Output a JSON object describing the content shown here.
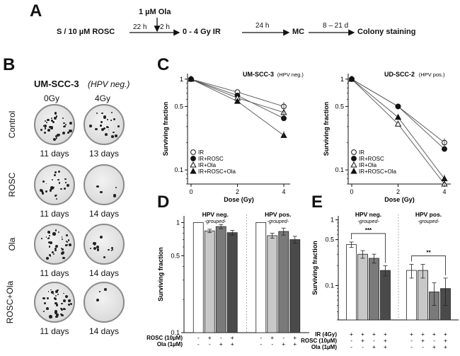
{
  "panels": {
    "A": "A",
    "B": "B",
    "C": "C",
    "D": "D",
    "E": "E"
  },
  "schematic": {
    "start": "S / 10 µM ROSC",
    "drug": "1 µM Ola",
    "t1": "22 h",
    "t2": "2 h",
    "ir": "0 - 4 Gy IR",
    "t3": "24 h",
    "mc": "MC",
    "t4": "8 – 21 d",
    "end": "Colony staining"
  },
  "panel_b": {
    "cell_line": "UM-SCC-3",
    "subtitle": "(HPV neg.)",
    "col_0": "0Gy",
    "col_4": "4Gy",
    "rows": [
      {
        "label": "Control",
        "day0": "11 days",
        "day4": "13 days"
      },
      {
        "label": "ROSC",
        "day0": "11 days",
        "day4": "14 days"
      },
      {
        "label": "Ola",
        "day0": "11 days",
        "day4": "14 days"
      },
      {
        "label": "ROSC+Ola",
        "day0": "11 days",
        "day4": "14 days"
      }
    ]
  },
  "chart_data": [
    {
      "type": "line",
      "id": "C-left",
      "title": "UM-SCC-3",
      "title_note": "(HPV neg.)",
      "xlabel": "Dose (Gy)",
      "ylabel": "Surviving fraction",
      "x": [
        0,
        2,
        4
      ],
      "xticks": [
        "0",
        "2",
        "4"
      ],
      "yscale": "log",
      "ylim": [
        0.07,
        1.15
      ],
      "yticks": [
        "1",
        "0.5",
        "0.1"
      ],
      "series": [
        {
          "name": "IR",
          "marker": "circle-open",
          "values": [
            1,
            0.72,
            0.5
          ]
        },
        {
          "name": "IR+ROSC",
          "marker": "circle",
          "values": [
            1,
            0.66,
            0.37
          ]
        },
        {
          "name": "IR+Ola",
          "marker": "triangle-open",
          "values": [
            1,
            0.62,
            0.43
          ]
        },
        {
          "name": "IR+ROSC+Ola",
          "marker": "triangle",
          "values": [
            1,
            0.57,
            0.24
          ]
        }
      ]
    },
    {
      "type": "line",
      "id": "C-right",
      "title": "UD-SCC-2",
      "title_note": "(HPV pos.)",
      "xlabel": "Dose (Gy)",
      "ylabel": "Surviving fraction",
      "x": [
        0,
        2,
        4
      ],
      "xticks": [
        "0",
        "2",
        "4"
      ],
      "yscale": "log",
      "ylim": [
        0.07,
        1.15
      ],
      "yticks": [
        "1",
        "0.5",
        "0.1"
      ],
      "series": [
        {
          "name": "IR",
          "marker": "circle-open",
          "values": [
            1,
            0.5,
            0.2
          ]
        },
        {
          "name": "IR+ROSC",
          "marker": "circle",
          "values": [
            1,
            0.5,
            0.17
          ]
        },
        {
          "name": "IR+Ola",
          "marker": "triangle-open",
          "values": [
            1,
            0.32,
            0.07
          ]
        },
        {
          "name": "IR+ROSC+Ola",
          "marker": "triangle",
          "values": [
            1,
            0.38,
            0.08
          ]
        }
      ]
    },
    {
      "type": "bar",
      "id": "D",
      "ylabel": "Surviving fraction",
      "yscale": "log",
      "ylim": [
        0.1,
        1.15
      ],
      "yticks": [
        "1",
        "0.5",
        "0.1"
      ],
      "groups": [
        {
          "name": "HPV neg.",
          "note": "-grouped-",
          "values": [
            1,
            0.84,
            0.92,
            0.81
          ],
          "errors": [
            0,
            0.03,
            0.04,
            0.04
          ]
        },
        {
          "name": "HPV pos.",
          "note": "-grouped-",
          "values": [
            1,
            0.76,
            0.83,
            0.7
          ],
          "errors": [
            0,
            0.04,
            0.06,
            0.05
          ]
        }
      ],
      "bar_colors": [
        "#ffffff",
        "#c8c8c8",
        "#7a7a7a",
        "#4a4a4a"
      ],
      "conditions": [
        {
          "name": "ROSC (10µM)",
          "values": [
            "-",
            "+",
            "-",
            "+"
          ]
        },
        {
          "name": "Ola (1µM)",
          "values": [
            "-",
            "-",
            "+",
            "+"
          ]
        }
      ]
    },
    {
      "type": "bar",
      "id": "E",
      "ylabel": "Surviving fraction",
      "yscale": "log",
      "ylim": [
        0.03,
        1.15
      ],
      "yticks": [
        "1",
        "0.5",
        "0.1"
      ],
      "groups": [
        {
          "name": "HPV neg.",
          "note": "-grouped-",
          "values": [
            0.42,
            0.3,
            0.26,
            0.17
          ],
          "errors": [
            0.04,
            0.04,
            0.04,
            0.03
          ],
          "sig": "***"
        },
        {
          "name": "HPV pos.",
          "note": "-grouped-",
          "values": [
            0.17,
            0.17,
            0.08,
            0.09
          ],
          "errors": [
            0.04,
            0.04,
            0.03,
            0.04
          ],
          "sig": "**"
        }
      ],
      "bar_colors": [
        "#ffffff",
        "#c8c8c8",
        "#7a7a7a",
        "#4a4a4a"
      ],
      "conditions": [
        {
          "name": "IR (4Gy)",
          "values": [
            "+",
            "+",
            "+",
            "+"
          ]
        },
        {
          "name": "ROSC (10µM)",
          "values": [
            "-",
            "+",
            "-",
            "+"
          ]
        },
        {
          "name": "Ola (1µM)",
          "values": [
            "-",
            "-",
            "+",
            "+"
          ]
        }
      ]
    }
  ]
}
